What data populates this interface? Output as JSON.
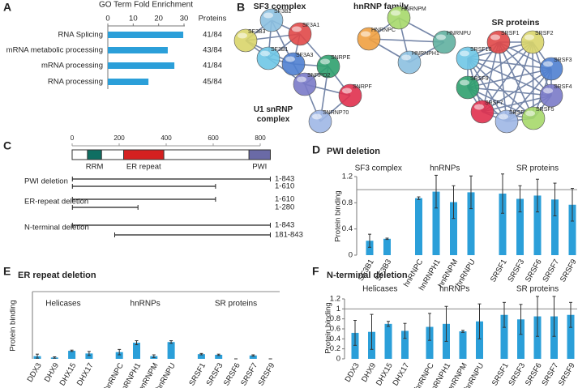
{
  "chart_data": [
    {
      "type": "hbar",
      "panel": "A",
      "title": "GO Term Fold Enrichment",
      "categories": [
        "RNA Splicing",
        "mRNA metabolic processing",
        "mRNA processing",
        "RNA processing"
      ],
      "values": [
        29.7,
        23.6,
        26.2,
        16
      ],
      "color": "#2b9fd9",
      "xlim": [
        0,
        30
      ],
      "xticks": [
        0,
        10,
        20,
        30
      ],
      "proteins_label": "Proteins",
      "proteins": [
        "41/84",
        "43/84",
        "41/84",
        "45/84"
      ]
    },
    {
      "type": "network",
      "panel": "B",
      "clusters": [
        {
          "name": "SF3 complex",
          "nodes": [
            "SF3B2",
            "SF3A1",
            "SF3B3",
            "SF3B1",
            "SF3A3"
          ]
        },
        {
          "name": "U1 snRNP complex",
          "nodes": [
            "SNRPE",
            "SNRPD2",
            "SNRPF",
            "SNRNP70"
          ]
        },
        {
          "name": "hnRNP family",
          "nodes": [
            "HNRNPM",
            "HNRNPC",
            "HNRNPU",
            "HNRNPH1"
          ]
        },
        {
          "name": "SR proteins",
          "nodes": [
            "SRSF1",
            "SRSF2",
            "SRSF10",
            "SRSF3",
            "SRSF9",
            "SRSF4",
            "SRSF7",
            "SRSF6",
            "SRSF5"
          ]
        }
      ]
    },
    {
      "type": "domain",
      "panel": "C",
      "xlim": [
        0,
        843
      ],
      "xticks": [
        0,
        200,
        400,
        600,
        800
      ],
      "length": 843,
      "domains": [
        {
          "name": "RRM",
          "start": 65,
          "end": 125,
          "color": "#0f6e62"
        },
        {
          "name": "ER repeat",
          "start": 219,
          "end": 390,
          "color": "#d42020"
        },
        {
          "name": "PWI",
          "start": 752,
          "end": 843,
          "color": "#6a6aa6"
        }
      ],
      "constructs": [
        {
          "name": "PWI deletion",
          "ranges": [
            {
              "start": 1,
              "end": 843,
              "label": "1-843"
            },
            {
              "start": 1,
              "end": 610,
              "label": "1-610"
            }
          ]
        },
        {
          "name": "ER-repeat deletion",
          "ranges": [
            {
              "start": 1,
              "end": 610,
              "label": "1-610"
            },
            {
              "start": 1,
              "end": 280,
              "label": "1-280"
            }
          ]
        },
        {
          "name": "N-terminal deletion",
          "ranges": [
            {
              "start": 1,
              "end": 843,
              "label": "1-843"
            },
            {
              "start": 181,
              "end": 843,
              "label": "181-843"
            }
          ]
        }
      ]
    },
    {
      "type": "bar",
      "panel": "D",
      "title": "PWI deletion",
      "ylabel": "Protein binding",
      "color": "#2b9fd9",
      "ylim": [
        0,
        1.2
      ],
      "yticks": [
        0,
        0.4,
        0.8,
        1.2
      ],
      "hline": 1,
      "groups": [
        {
          "name": "SF3 complex",
          "categories": [
            "SF3B1",
            "SF3B3"
          ],
          "values": [
            0.22,
            0.25
          ],
          "errors": [
            0.1,
            0.01
          ]
        },
        {
          "name": "hnRNPs",
          "categories": [
            "hnRNPC",
            "hnRNPH1",
            "hnRNPM",
            "hnRNPU"
          ],
          "values": [
            0.87,
            0.97,
            0.81,
            0.96
          ],
          "errors": [
            0.02,
            0.25,
            0.25,
            0.25
          ]
        },
        {
          "name": "SR proteins",
          "categories": [
            "SRSF1",
            "SRSF3",
            "SRSF6",
            "SRSF7",
            "SRSF9"
          ],
          "values": [
            0.94,
            0.86,
            0.91,
            0.85,
            0.77
          ],
          "errors": [
            0.3,
            0.2,
            0.25,
            0.25,
            0.25
          ]
        }
      ]
    },
    {
      "type": "bar",
      "panel": "E",
      "title": "ER repeat deletion",
      "ylabel": "Protein binding",
      "color": "#2b9fd9",
      "ylim": [
        0,
        1
      ],
      "hline": 1,
      "groups": [
        {
          "name": "Helicases",
          "categories": [
            "DDX3",
            "DHX9",
            "DHX15",
            "DHX17"
          ],
          "values": [
            0.04,
            0.02,
            0.12,
            0.08
          ],
          "errors": [
            0.03,
            0.01,
            0.01,
            0.03
          ]
        },
        {
          "name": "hnRNPs",
          "categories": [
            "hnRNPC",
            "hnRNPH1",
            "hnRNPM",
            "hnRNPU"
          ],
          "values": [
            0.1,
            0.24,
            0.04,
            0.25
          ],
          "errors": [
            0.04,
            0.03,
            0.02,
            0.02
          ]
        },
        {
          "name": "SR proteins",
          "categories": [
            "SRSF1",
            "SRSF3",
            "SRSF6",
            "SRSF7",
            "SRSF9"
          ],
          "values": [
            0.07,
            0.06,
            0,
            0.05,
            0
          ],
          "errors": [
            0.01,
            0.01,
            0,
            0.01,
            0
          ]
        }
      ]
    },
    {
      "type": "bar",
      "panel": "F",
      "title": "N-terminal deletion",
      "ylabel": "Protein binding",
      "color": "#2b9fd9",
      "ylim": [
        0,
        1.2
      ],
      "yticks": [
        0,
        0.2,
        0.4,
        0.6,
        0.8,
        1,
        1.2
      ],
      "hline": 1,
      "groups": [
        {
          "name": "Helicases",
          "categories": [
            "DDX3",
            "DHX9",
            "DHX15",
            "DHX17"
          ],
          "values": [
            0.52,
            0.54,
            0.7,
            0.56
          ],
          "errors": [
            0.25,
            0.35,
            0.05,
            0.15
          ]
        },
        {
          "name": "hnRNPs",
          "categories": [
            "hnRNPC",
            "hnRNPH1",
            "hnRNPM",
            "hnRNPU"
          ],
          "values": [
            0.64,
            0.7,
            0.55,
            0.75
          ],
          "errors": [
            0.27,
            0.35,
            0.02,
            0.35
          ]
        },
        {
          "name": "SR proteins",
          "categories": [
            "SRSF1",
            "SRSF3",
            "SRSF6",
            "SRSF7",
            "SRSF9"
          ],
          "values": [
            0.88,
            0.79,
            0.85,
            0.85,
            0.88
          ],
          "errors": [
            0.25,
            0.3,
            0.4,
            0.4,
            0.25
          ]
        }
      ]
    }
  ]
}
